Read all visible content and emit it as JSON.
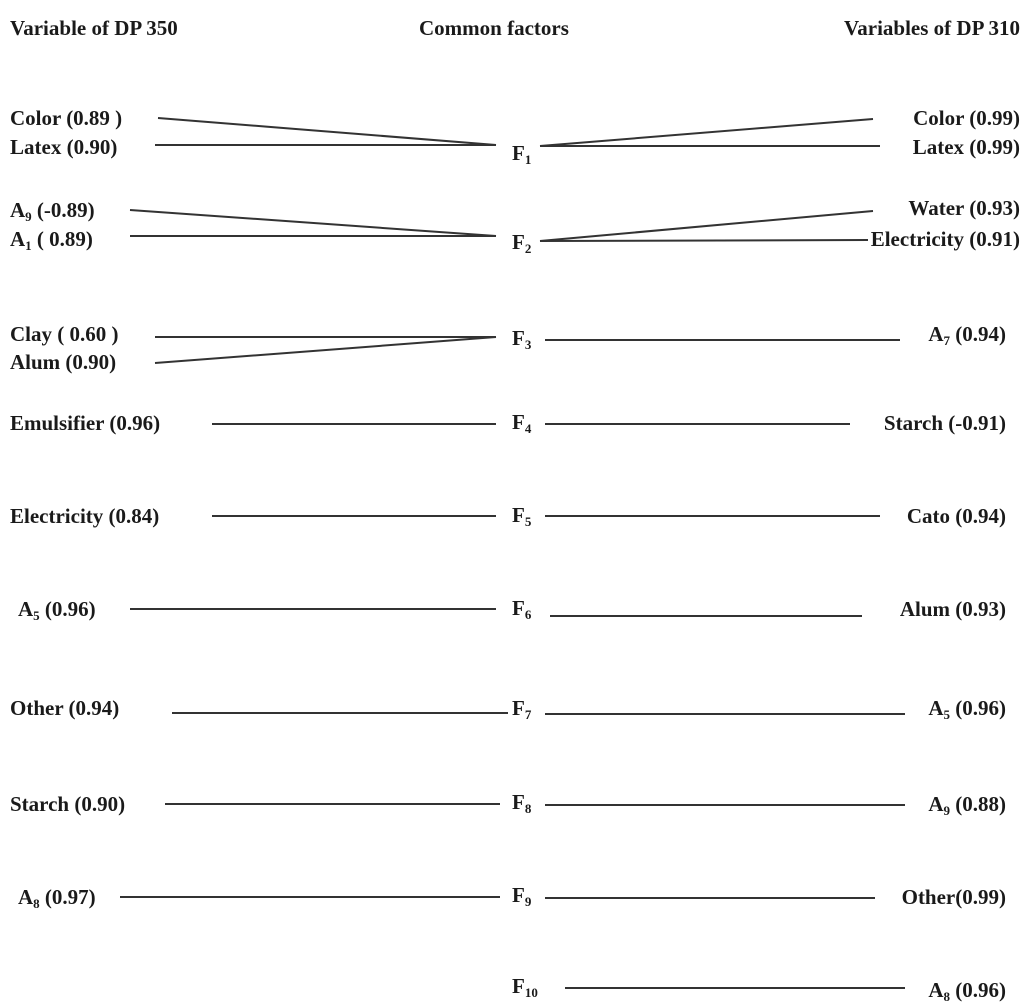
{
  "headers": {
    "left": "Variable of DP 350",
    "center": "Common factors",
    "right": "Variables of DP 310"
  },
  "factors": [
    {
      "label": "F",
      "sub": "1"
    },
    {
      "label": "F",
      "sub": "2"
    },
    {
      "label": "F",
      "sub": "3"
    },
    {
      "label": "F",
      "sub": "4"
    },
    {
      "label": "F",
      "sub": "5"
    },
    {
      "label": "F",
      "sub": "6"
    },
    {
      "label": "F",
      "sub": "7"
    },
    {
      "label": "F",
      "sub": "8"
    },
    {
      "label": "F",
      "sub": "9"
    },
    {
      "label": "F",
      "sub": "10"
    }
  ],
  "left_vars": [
    {
      "pre": "Color (0.89 )",
      "sub": "",
      "post": ""
    },
    {
      "pre": "Latex (0.90)",
      "sub": "",
      "post": ""
    },
    {
      "pre": "A",
      "sub": "9",
      "post": " (-0.89)"
    },
    {
      "pre": "A",
      "sub": "1",
      "post": " ( 0.89)"
    },
    {
      "pre": "Clay ( 0.60 )",
      "sub": "",
      "post": ""
    },
    {
      "pre": "Alum (0.90)",
      "sub": "",
      "post": ""
    },
    {
      "pre": "Emulsifier (0.96)",
      "sub": "",
      "post": ""
    },
    {
      "pre": "Electricity (0.84)",
      "sub": "",
      "post": ""
    },
    {
      "pre": "A",
      "sub": "5",
      "post": " (0.96)"
    },
    {
      "pre": "Other (0.94)",
      "sub": "",
      "post": ""
    },
    {
      "pre": "Starch (0.90)",
      "sub": "",
      "post": ""
    },
    {
      "pre": "A",
      "sub": "8",
      "post": " (0.97)"
    }
  ],
  "right_vars": [
    {
      "pre": "Color (0.99)",
      "sub": "",
      "post": ""
    },
    {
      "pre": "Latex (0.99)",
      "sub": "",
      "post": ""
    },
    {
      "pre": "Water (0.93)",
      "sub": "",
      "post": ""
    },
    {
      "pre": "Electricity (0.91)",
      "sub": "",
      "post": ""
    },
    {
      "pre": "A",
      "sub": "7",
      "post": " (0.94)"
    },
    {
      "pre": "Starch (-0.91)",
      "sub": "",
      "post": ""
    },
    {
      "pre": "Cato (0.94)",
      "sub": "",
      "post": ""
    },
    {
      "pre": "Alum (0.93)",
      "sub": "",
      "post": ""
    },
    {
      "pre": "A",
      "sub": "5",
      "post": " (0.96)"
    },
    {
      "pre": "A",
      "sub": "9",
      "post": " (0.88)"
    },
    {
      "pre": "Other(0.99)",
      "sub": "",
      "post": ""
    },
    {
      "pre": "A",
      "sub": "8",
      "post": " (0.96)"
    }
  ],
  "links": {
    "left": [
      [
        0,
        0
      ],
      [
        1,
        0
      ],
      [
        2,
        1
      ],
      [
        3,
        1
      ],
      [
        4,
        2
      ],
      [
        5,
        2
      ],
      [
        6,
        3
      ],
      [
        7,
        4
      ],
      [
        8,
        5
      ],
      [
        9,
        6
      ],
      [
        10,
        7
      ],
      [
        11,
        8
      ]
    ],
    "right": [
      [
        0,
        0
      ],
      [
        1,
        0
      ],
      [
        2,
        1
      ],
      [
        3,
        1
      ],
      [
        4,
        2
      ],
      [
        5,
        3
      ],
      [
        6,
        4
      ],
      [
        7,
        5
      ],
      [
        8,
        6
      ],
      [
        9,
        7
      ],
      [
        10,
        8
      ],
      [
        11,
        9
      ]
    ]
  },
  "colors": {
    "text": "#1a1a1a",
    "line": "#333333"
  }
}
